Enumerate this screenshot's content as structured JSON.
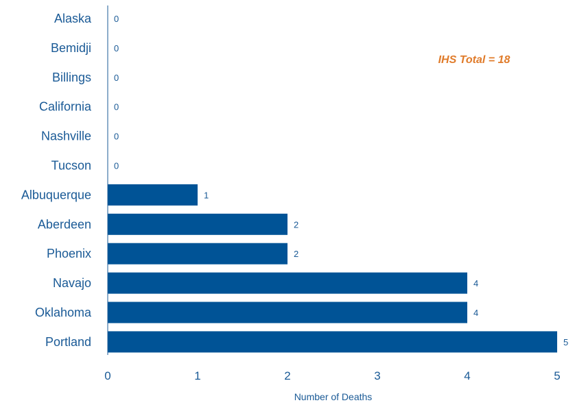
{
  "chart_data": {
    "type": "bar",
    "orientation": "horizontal",
    "categories": [
      "Alaska",
      "Bemidji",
      "Billings",
      "California",
      "Nashville",
      "Tucson",
      "Albuquerque",
      "Aberdeen",
      "Phoenix",
      "Navajo",
      "Oklahoma",
      "Portland"
    ],
    "values": [
      0,
      0,
      0,
      0,
      0,
      0,
      1,
      2,
      2,
      4,
      4,
      5
    ],
    "xlabel": "Number of Deaths",
    "ylabel": "",
    "xlim": [
      0,
      5
    ],
    "xticks": [
      "0",
      "1",
      "2",
      "3",
      "4",
      "5"
    ],
    "annotation": "IHS Total = 18",
    "grid": false,
    "bar_color": "#005396",
    "text_color": "#1a5a96",
    "annotation_color": "#e07b2a"
  }
}
